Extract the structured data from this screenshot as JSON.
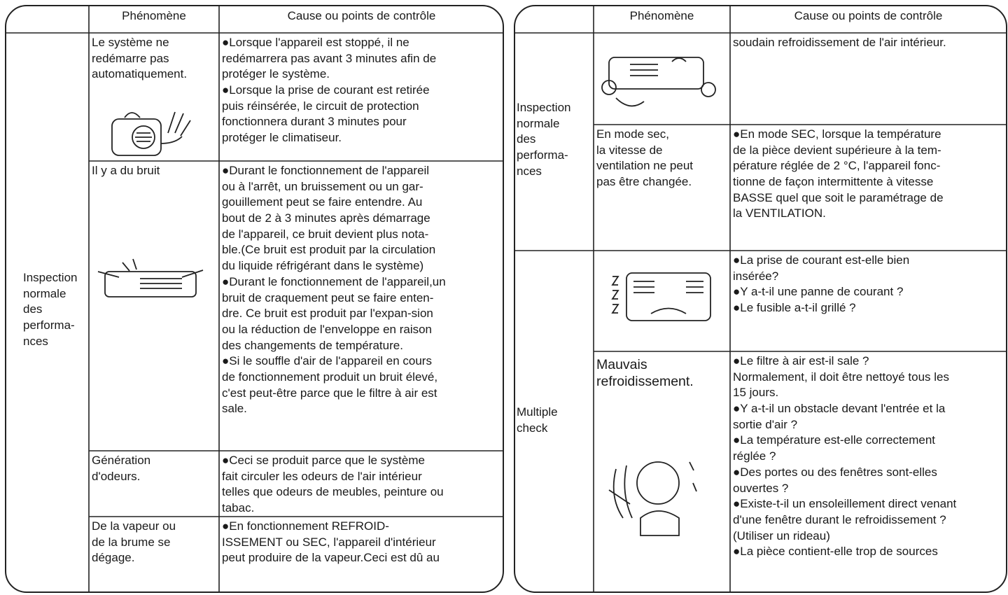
{
  "left": {
    "header": {
      "phenomene": "Phénomène",
      "cause": "Cause ou points de contrôle"
    },
    "group": [
      "Inspection",
      "normale",
      "des",
      "performa-",
      "nces"
    ],
    "rows": [
      {
        "phenomene": [
          "Le système ne",
          "redémarre pas",
          "automatiquement."
        ],
        "cause": [
          "●Lorsque l'appareil est stoppé, il ne",
          "redémarrera pas avant 3 minutes afin de",
          "protéger le système.",
          "●Lorsque la prise de courant est retirée",
          "puis réinsérée, le circuit de protection",
          "fonctionnera durant 3 minutes pour",
          "protéger le climatiseur."
        ]
      },
      {
        "phenomene": [
          "Il y a du bruit"
        ],
        "cause": [
          "●Durant le fonctionnement de l'appareil",
          "ou à l'arrêt, un bruissement ou un gar-",
          "gouillement peut se faire entendre. Au",
          "bout de 2 à 3 minutes après démarrage",
          "de l'appareil, ce bruit devient plus nota-",
          "ble.(Ce bruit est produit par la circulation",
          "du liquide réfrigérant dans le système)",
          "●Durant le fonctionnement de l'appareil,un",
          "bruit de craquement peut se faire enten-",
          "dre. Ce bruit est produit par l'expan-sion",
          "ou la réduction de l'enveloppe en raison",
          "des changements de température.",
          "●Si le souffle d'air de l'appareil en cours",
          "de fonctionnement produit un bruit élevé,",
          "c'est peut-être parce que le filtre à air est",
          "sale."
        ]
      },
      {
        "phenomene": [
          "Génération",
          "d'odeurs."
        ],
        "cause": [
          "●Ceci se produit parce que le système",
          "fait circuler les odeurs de l'air intérieur",
          "telles que odeurs de meubles, peinture ou",
          "tabac."
        ]
      },
      {
        "phenomene": [
          "De la vapeur ou",
          "de la brume se",
          "dégage."
        ],
        "cause": [
          "●En fonctionnement REFROID-",
          "ISSEMENT ou SEC, l'appareil d'intérieur",
          "peut produire de la vapeur.Ceci est dû au"
        ]
      }
    ]
  },
  "right": {
    "header": {
      "phenomene": "Phénomène",
      "cause": "Cause ou points de contrôle"
    },
    "groups": [
      {
        "label": [
          "Inspection",
          "normale",
          "des",
          "performa-",
          "nces"
        ],
        "rows": [
          {
            "cause": [
              "soudain refroidissement de l'air intérieur."
            ]
          },
          {
            "phenomene": [
              "En mode sec,",
              "la vitesse de",
              "ventilation ne peut",
              "pas être changée."
            ],
            "cause": [
              "●En mode SEC, lorsque la température",
              "de la pièce devient supérieure à la tem-",
              "pérature réglée de 2 °C, l'appareil fonc-",
              "tionne de façon intermittente à vitesse",
              "BASSE quel que soit le paramétrage de",
              "la VENTILATION."
            ]
          }
        ]
      },
      {
        "label": [
          "Multiple",
          "check"
        ],
        "rows": [
          {
            "cause": [
              "●La prise de courant est-elle bien",
              "insérée?",
              "●Y a-t-il une panne de courant ?",
              "●Le fusible a-t-il grillé ?"
            ]
          },
          {
            "phenomene": [
              "Mauvais",
              "refroidissement."
            ],
            "cause": [
              "●Le filtre à air est-il sale ?",
              "Normalement, il doit être nettoyé tous les",
              "15 jours.",
              "●Y a-t-il un obstacle devant l'entrée et la",
              "sortie d'air ?",
              "●La température est-elle correctement",
              "réglée ?",
              "●Des portes ou des fenêtres sont-elles",
              "ouvertes ?",
              "●Existe-t-il un ensoleillement direct venant",
              "d'une fenêtre durant le refroidissement ?",
              "(Utiliser un rideau)",
              "●La pièce contient-elle trop de sources"
            ]
          }
        ]
      }
    ]
  }
}
